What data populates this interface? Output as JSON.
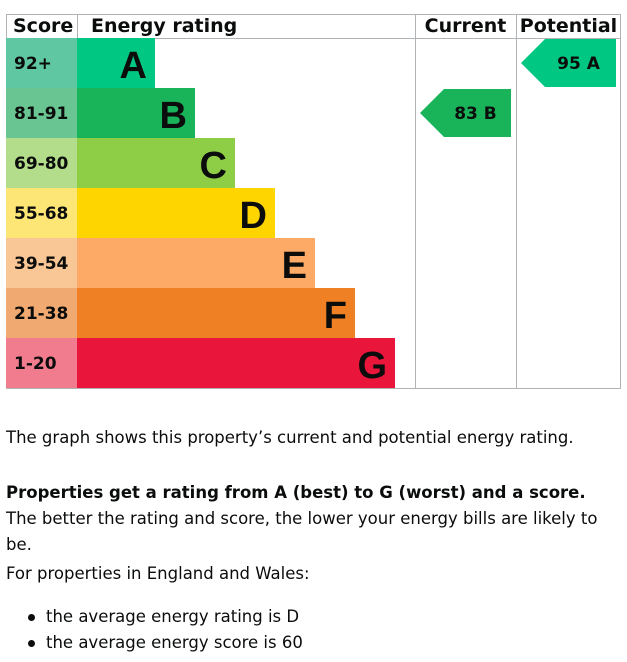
{
  "chart_data": {
    "type": "table",
    "headers": {
      "score": "Score",
      "rating": "Energy rating",
      "current": "Current",
      "potential": "Potential"
    },
    "bands": [
      {
        "range": "92+",
        "letter": "A",
        "min": 92,
        "max": 100,
        "color": "#00c781",
        "score_color": "#5fc7a1"
      },
      {
        "range": "81-91",
        "letter": "B",
        "min": 81,
        "max": 91,
        "color": "#19b459",
        "score_color": "#69c591"
      },
      {
        "range": "69-80",
        "letter": "C",
        "min": 69,
        "max": 80,
        "color": "#8dce46",
        "score_color": "#b3dd8a"
      },
      {
        "range": "55-68",
        "letter": "D",
        "min": 55,
        "max": 68,
        "color": "#ffd500",
        "score_color": "#fde675"
      },
      {
        "range": "39-54",
        "letter": "E",
        "min": 39,
        "max": 54,
        "color": "#fcaa65",
        "score_color": "#f9c695"
      },
      {
        "range": "21-38",
        "letter": "F",
        "min": 21,
        "max": 38,
        "color": "#ef8023",
        "score_color": "#f0aa71"
      },
      {
        "range": "1-20",
        "letter": "G",
        "min": 1,
        "max": 20,
        "color": "#e9153b",
        "score_color": "#f07c8e"
      }
    ],
    "current": {
      "score": 83,
      "letter": "B",
      "label": "83  B",
      "color": "#19b459"
    },
    "potential": {
      "score": 95,
      "letter": "A",
      "label": "95  A",
      "color": "#00c781"
    }
  },
  "text": {
    "summary": "The graph shows this property’s current and potential energy rating.",
    "bold_intro": "Properties get a rating from A (best) to G (worst) and a score.",
    "rest": " The better the rating and score, the lower your energy bills are likely to be.",
    "region": "For properties in England and Wales:",
    "bullets": [
      "the average energy rating is D",
      "the average energy score is 60"
    ]
  }
}
